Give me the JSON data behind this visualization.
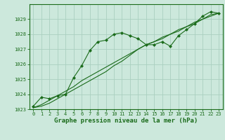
{
  "line1_x": [
    0,
    1,
    2,
    3,
    4,
    5,
    6,
    7,
    8,
    9,
    10,
    11,
    12,
    13,
    14,
    15,
    16,
    17,
    18,
    19,
    20,
    21,
    22,
    23
  ],
  "line1_y": [
    1023.2,
    1023.8,
    1023.7,
    1023.9,
    1024.0,
    1025.1,
    1025.9,
    1026.9,
    1027.5,
    1027.6,
    1028.0,
    1028.1,
    1027.9,
    1027.7,
    1027.3,
    1027.3,
    1027.5,
    1027.2,
    1027.9,
    1028.3,
    1028.7,
    1029.2,
    1029.5,
    1029.4
  ],
  "line2_x": [
    0,
    1,
    2,
    3,
    4,
    5,
    6,
    7,
    8,
    9,
    10,
    11,
    12,
    13,
    14,
    15,
    16,
    17,
    18,
    19,
    20,
    21,
    22,
    23
  ],
  "line2_y": [
    1023.1,
    1023.3,
    1023.6,
    1023.9,
    1024.2,
    1024.5,
    1024.9,
    1025.2,
    1025.5,
    1025.8,
    1026.1,
    1026.4,
    1026.7,
    1027.0,
    1027.3,
    1027.5,
    1027.8,
    1028.0,
    1028.3,
    1028.5,
    1028.8,
    1029.0,
    1029.3,
    1029.4
  ],
  "line3_x": [
    0,
    1,
    2,
    3,
    4,
    5,
    6,
    7,
    8,
    9,
    10,
    11,
    12,
    13,
    14,
    15,
    16,
    17,
    18,
    19,
    20,
    21,
    22,
    23
  ],
  "line3_y": [
    1023.1,
    1023.2,
    1023.4,
    1023.7,
    1024.0,
    1024.3,
    1024.6,
    1024.9,
    1025.2,
    1025.5,
    1025.9,
    1026.2,
    1026.6,
    1027.0,
    1027.3,
    1027.5,
    1027.7,
    1028.0,
    1028.2,
    1028.5,
    1028.7,
    1029.0,
    1029.2,
    1029.4
  ],
  "line_color": "#1a6b1a",
  "bg_color": "#cce8dc",
  "grid_color": "#aad0c0",
  "xlabel": "Graphe pression niveau de la mer (hPa)",
  "ylim": [
    1023.0,
    1030.0
  ],
  "xlim": [
    -0.5,
    23.5
  ],
  "yticks": [
    1023,
    1024,
    1025,
    1026,
    1027,
    1028,
    1029
  ],
  "xticks": [
    0,
    1,
    2,
    3,
    4,
    5,
    6,
    7,
    8,
    9,
    10,
    11,
    12,
    13,
    14,
    15,
    16,
    17,
    18,
    19,
    20,
    21,
    22,
    23
  ],
  "tick_fontsize": 5.0,
  "xlabel_fontsize": 6.5
}
